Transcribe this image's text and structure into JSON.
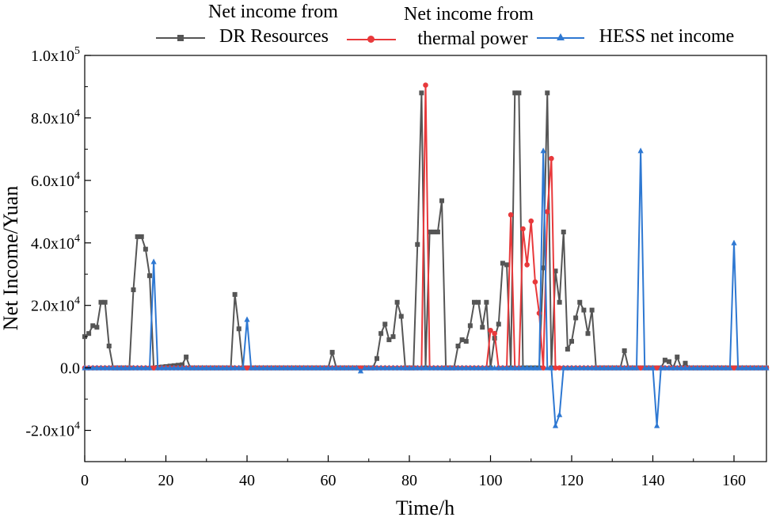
{
  "chart_data": {
    "type": "line",
    "title": "",
    "xlabel": "Time/h",
    "ylabel": "Net Income/Yuan",
    "xlim": [
      0,
      168
    ],
    "ylim": [
      -30000,
      100000
    ],
    "xticks": [
      0,
      20,
      40,
      60,
      80,
      100,
      120,
      140,
      160
    ],
    "xtick_labels": [
      "0",
      "20",
      "40",
      "60",
      "80",
      "100",
      "120",
      "140",
      "160"
    ],
    "yticks": [
      -20000,
      0,
      20000,
      40000,
      60000,
      80000,
      100000
    ],
    "ytick_labels": [
      {
        "mant": "-2.0x10",
        "exp": "4"
      },
      {
        "mant": "0.0",
        "exp": ""
      },
      {
        "mant": "2.0x10",
        "exp": "4"
      },
      {
        "mant": "4.0x10",
        "exp": "4"
      },
      {
        "mant": "6.0x10",
        "exp": "4"
      },
      {
        "mant": "8.0x10",
        "exp": "4"
      },
      {
        "mant": "1.0x10",
        "exp": "5"
      }
    ],
    "legend_position": "top",
    "series": [
      {
        "name": "Net income from DR Resources",
        "legend_lines": [
          "Net income from",
          "DR Resources"
        ],
        "color": "#555555",
        "marker": "square",
        "points": [
          [
            0,
            10000
          ],
          [
            1,
            11000
          ],
          [
            2,
            13500
          ],
          [
            3,
            13000
          ],
          [
            4,
            21000
          ],
          [
            5,
            21000
          ],
          [
            6,
            7000
          ],
          [
            7,
            0
          ],
          [
            11,
            0
          ],
          [
            12,
            25000
          ],
          [
            13,
            42000
          ],
          [
            14,
            42000
          ],
          [
            15,
            38000
          ],
          [
            16,
            29500
          ],
          [
            17,
            0
          ],
          [
            24,
            1000
          ],
          [
            25,
            3500
          ],
          [
            26,
            0
          ],
          [
            36,
            0
          ],
          [
            37,
            23500
          ],
          [
            38,
            12500
          ],
          [
            39,
            0
          ],
          [
            60,
            0
          ],
          [
            61,
            5000
          ],
          [
            62,
            0
          ],
          [
            71,
            0
          ],
          [
            72,
            3000
          ],
          [
            73,
            11000
          ],
          [
            74,
            14000
          ],
          [
            75,
            9000
          ],
          [
            76,
            10000
          ],
          [
            77,
            21000
          ],
          [
            78,
            16500
          ],
          [
            79,
            0
          ],
          [
            81,
            0
          ],
          [
            82,
            39500
          ],
          [
            83,
            88000
          ],
          [
            84,
            0
          ],
          [
            85,
            43500
          ],
          [
            86,
            43500
          ],
          [
            87,
            43500
          ],
          [
            88,
            53500
          ],
          [
            89,
            0
          ],
          [
            91,
            0
          ],
          [
            92,
            7000
          ],
          [
            93,
            9000
          ],
          [
            94,
            8500
          ],
          [
            95,
            13500
          ],
          [
            96,
            21000
          ],
          [
            97,
            21000
          ],
          [
            98,
            13000
          ],
          [
            99,
            21000
          ],
          [
            100,
            0
          ],
          [
            101,
            9500
          ],
          [
            102,
            14000
          ],
          [
            103,
            33500
          ],
          [
            104,
            33000
          ],
          [
            105,
            0
          ],
          [
            106,
            88000
          ],
          [
            107,
            88000
          ],
          [
            108,
            0
          ],
          [
            112,
            0
          ],
          [
            113,
            32000
          ],
          [
            114,
            88000
          ],
          [
            115,
            0
          ],
          [
            116,
            31000
          ],
          [
            117,
            21000
          ],
          [
            118,
            43500
          ],
          [
            119,
            6000
          ],
          [
            120,
            8500
          ],
          [
            121,
            16000
          ],
          [
            122,
            21000
          ],
          [
            123,
            18500
          ],
          [
            124,
            11000
          ],
          [
            125,
            18500
          ],
          [
            126,
            0
          ],
          [
            132,
            0
          ],
          [
            133,
            5500
          ],
          [
            134,
            0
          ],
          [
            142,
            0
          ],
          [
            143,
            2500
          ],
          [
            144,
            2000
          ],
          [
            145,
            0
          ],
          [
            146,
            3500
          ],
          [
            147,
            0
          ],
          [
            148,
            1500
          ],
          [
            149,
            0
          ],
          [
            168,
            0
          ]
        ]
      },
      {
        "name": "Net income from thermal power",
        "legend_lines": [
          "Net income from",
          "thermal power"
        ],
        "color": "#e8393b",
        "marker": "circle",
        "points": [
          [
            0,
            0
          ],
          [
            83,
            0
          ],
          [
            84,
            90500
          ],
          [
            85,
            0
          ],
          [
            99,
            0
          ],
          [
            100,
            12000
          ],
          [
            101,
            11000
          ],
          [
            102,
            0
          ],
          [
            104,
            0
          ],
          [
            105,
            49000
          ],
          [
            106,
            0
          ],
          [
            107,
            0
          ],
          [
            108,
            44500
          ],
          [
            109,
            33000
          ],
          [
            110,
            47000
          ],
          [
            111,
            27500
          ],
          [
            112,
            17500
          ],
          [
            113,
            0
          ],
          [
            114,
            50000
          ],
          [
            115,
            67000
          ],
          [
            116,
            0
          ],
          [
            168,
            0
          ]
        ]
      },
      {
        "name": "HESS net income",
        "legend_lines": [
          "HESS net income"
        ],
        "color": "#2e78d2",
        "marker": "triangle",
        "points": [
          [
            0,
            0
          ],
          [
            16,
            0
          ],
          [
            17,
            34000
          ],
          [
            18,
            0
          ],
          [
            39,
            0
          ],
          [
            40,
            15500
          ],
          [
            41,
            0
          ],
          [
            67,
            0
          ],
          [
            68,
            -1000
          ],
          [
            69,
            0
          ],
          [
            112,
            0
          ],
          [
            113,
            69500
          ],
          [
            114,
            0
          ],
          [
            115,
            0
          ],
          [
            116,
            -18500
          ],
          [
            117,
            -15000
          ],
          [
            118,
            0
          ],
          [
            136,
            0
          ],
          [
            137,
            69500
          ],
          [
            138,
            0
          ],
          [
            140,
            0
          ],
          [
            141,
            -18500
          ],
          [
            142,
            0
          ],
          [
            159,
            0
          ],
          [
            160,
            40000
          ],
          [
            161,
            0
          ],
          [
            168,
            0
          ]
        ]
      }
    ]
  }
}
